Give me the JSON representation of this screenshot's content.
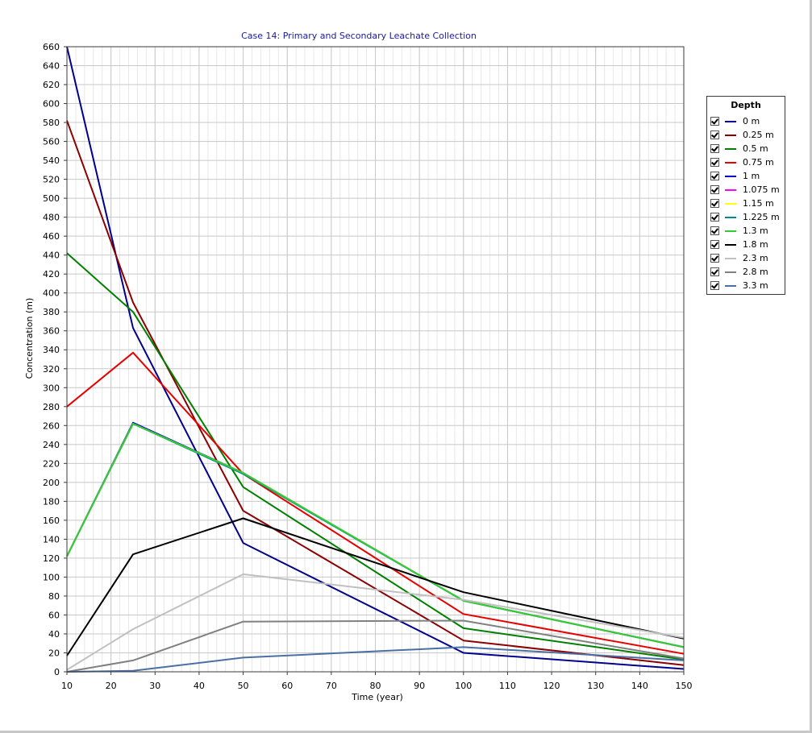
{
  "chart_data": {
    "type": "line",
    "title": "Case 14:  Primary and Secondary Leachate Collection",
    "xlabel": "Time (year)",
    "ylabel": "Concentration (m)",
    "xlim": [
      10,
      150
    ],
    "ylim": [
      0,
      660
    ],
    "x_ticks": [
      10,
      20,
      30,
      40,
      50,
      60,
      70,
      80,
      90,
      100,
      110,
      120,
      130,
      140,
      150
    ],
    "y_ticks": [
      0,
      20,
      40,
      60,
      80,
      100,
      120,
      140,
      160,
      180,
      200,
      220,
      240,
      260,
      280,
      300,
      320,
      340,
      360,
      380,
      400,
      420,
      440,
      460,
      480,
      500,
      520,
      540,
      560,
      580,
      600,
      620,
      640,
      660
    ],
    "grid": true,
    "legend_title": "Depth",
    "legend_position": "right",
    "series": [
      {
        "name": "0 m",
        "color": "#00008b",
        "x": [
          10,
          25,
          50,
          100,
          150
        ],
        "y": [
          660,
          363,
          136,
          20,
          3
        ]
      },
      {
        "name": "0.25 m",
        "color": "#8b0000",
        "x": [
          10,
          25,
          50,
          100,
          150
        ],
        "y": [
          582,
          390,
          170,
          33,
          7
        ]
      },
      {
        "name": "0.5 m",
        "color": "#008000",
        "x": [
          10,
          25,
          50,
          100,
          150
        ],
        "y": [
          442,
          380,
          195,
          46,
          13
        ]
      },
      {
        "name": "0.75 m",
        "color": "#e60000",
        "x": [
          10,
          25,
          50,
          100,
          150
        ],
        "y": [
          280,
          337,
          209,
          61,
          19
        ]
      },
      {
        "name": "1 m",
        "color": "#0000cd",
        "x": [
          10,
          25,
          50,
          100,
          150
        ],
        "y": [
          122,
          263,
          210,
          75,
          26
        ]
      },
      {
        "name": "1.075 m",
        "color": "#ff00ff",
        "x": [
          10,
          25,
          50,
          100,
          150
        ],
        "y": [
          122,
          262,
          210,
          75,
          26
        ]
      },
      {
        "name": "1.15 m",
        "color": "#ffff00",
        "x": [
          10,
          25,
          50,
          100,
          150
        ],
        "y": [
          122,
          262,
          210,
          75,
          26
        ]
      },
      {
        "name": "1.225 m",
        "color": "#008b8b",
        "x": [
          10,
          25,
          50,
          100,
          150
        ],
        "y": [
          122,
          262,
          209,
          75,
          26
        ]
      },
      {
        "name": "1.3 m",
        "color": "#32cd32",
        "x": [
          10,
          25,
          50,
          100,
          150
        ],
        "y": [
          122,
          262,
          210,
          75,
          26
        ]
      },
      {
        "name": "1.8 m",
        "color": "#000000",
        "x": [
          10,
          25,
          50,
          100,
          150
        ],
        "y": [
          17,
          124,
          162,
          84,
          35
        ]
      },
      {
        "name": "2.3 m",
        "color": "#c0c0c0",
        "x": [
          10,
          25,
          50,
          100,
          150
        ],
        "y": [
          2,
          45,
          103,
          76,
          36
        ]
      },
      {
        "name": "2.8 m",
        "color": "#808080",
        "x": [
          10,
          25,
          50,
          100,
          150
        ],
        "y": [
          0,
          12,
          53,
          54,
          14
        ]
      },
      {
        "name": "3.3 m",
        "color": "#4a6fa5",
        "x": [
          10,
          25,
          50,
          100,
          150
        ],
        "y": [
          0,
          1,
          15,
          26,
          12
        ]
      }
    ]
  }
}
